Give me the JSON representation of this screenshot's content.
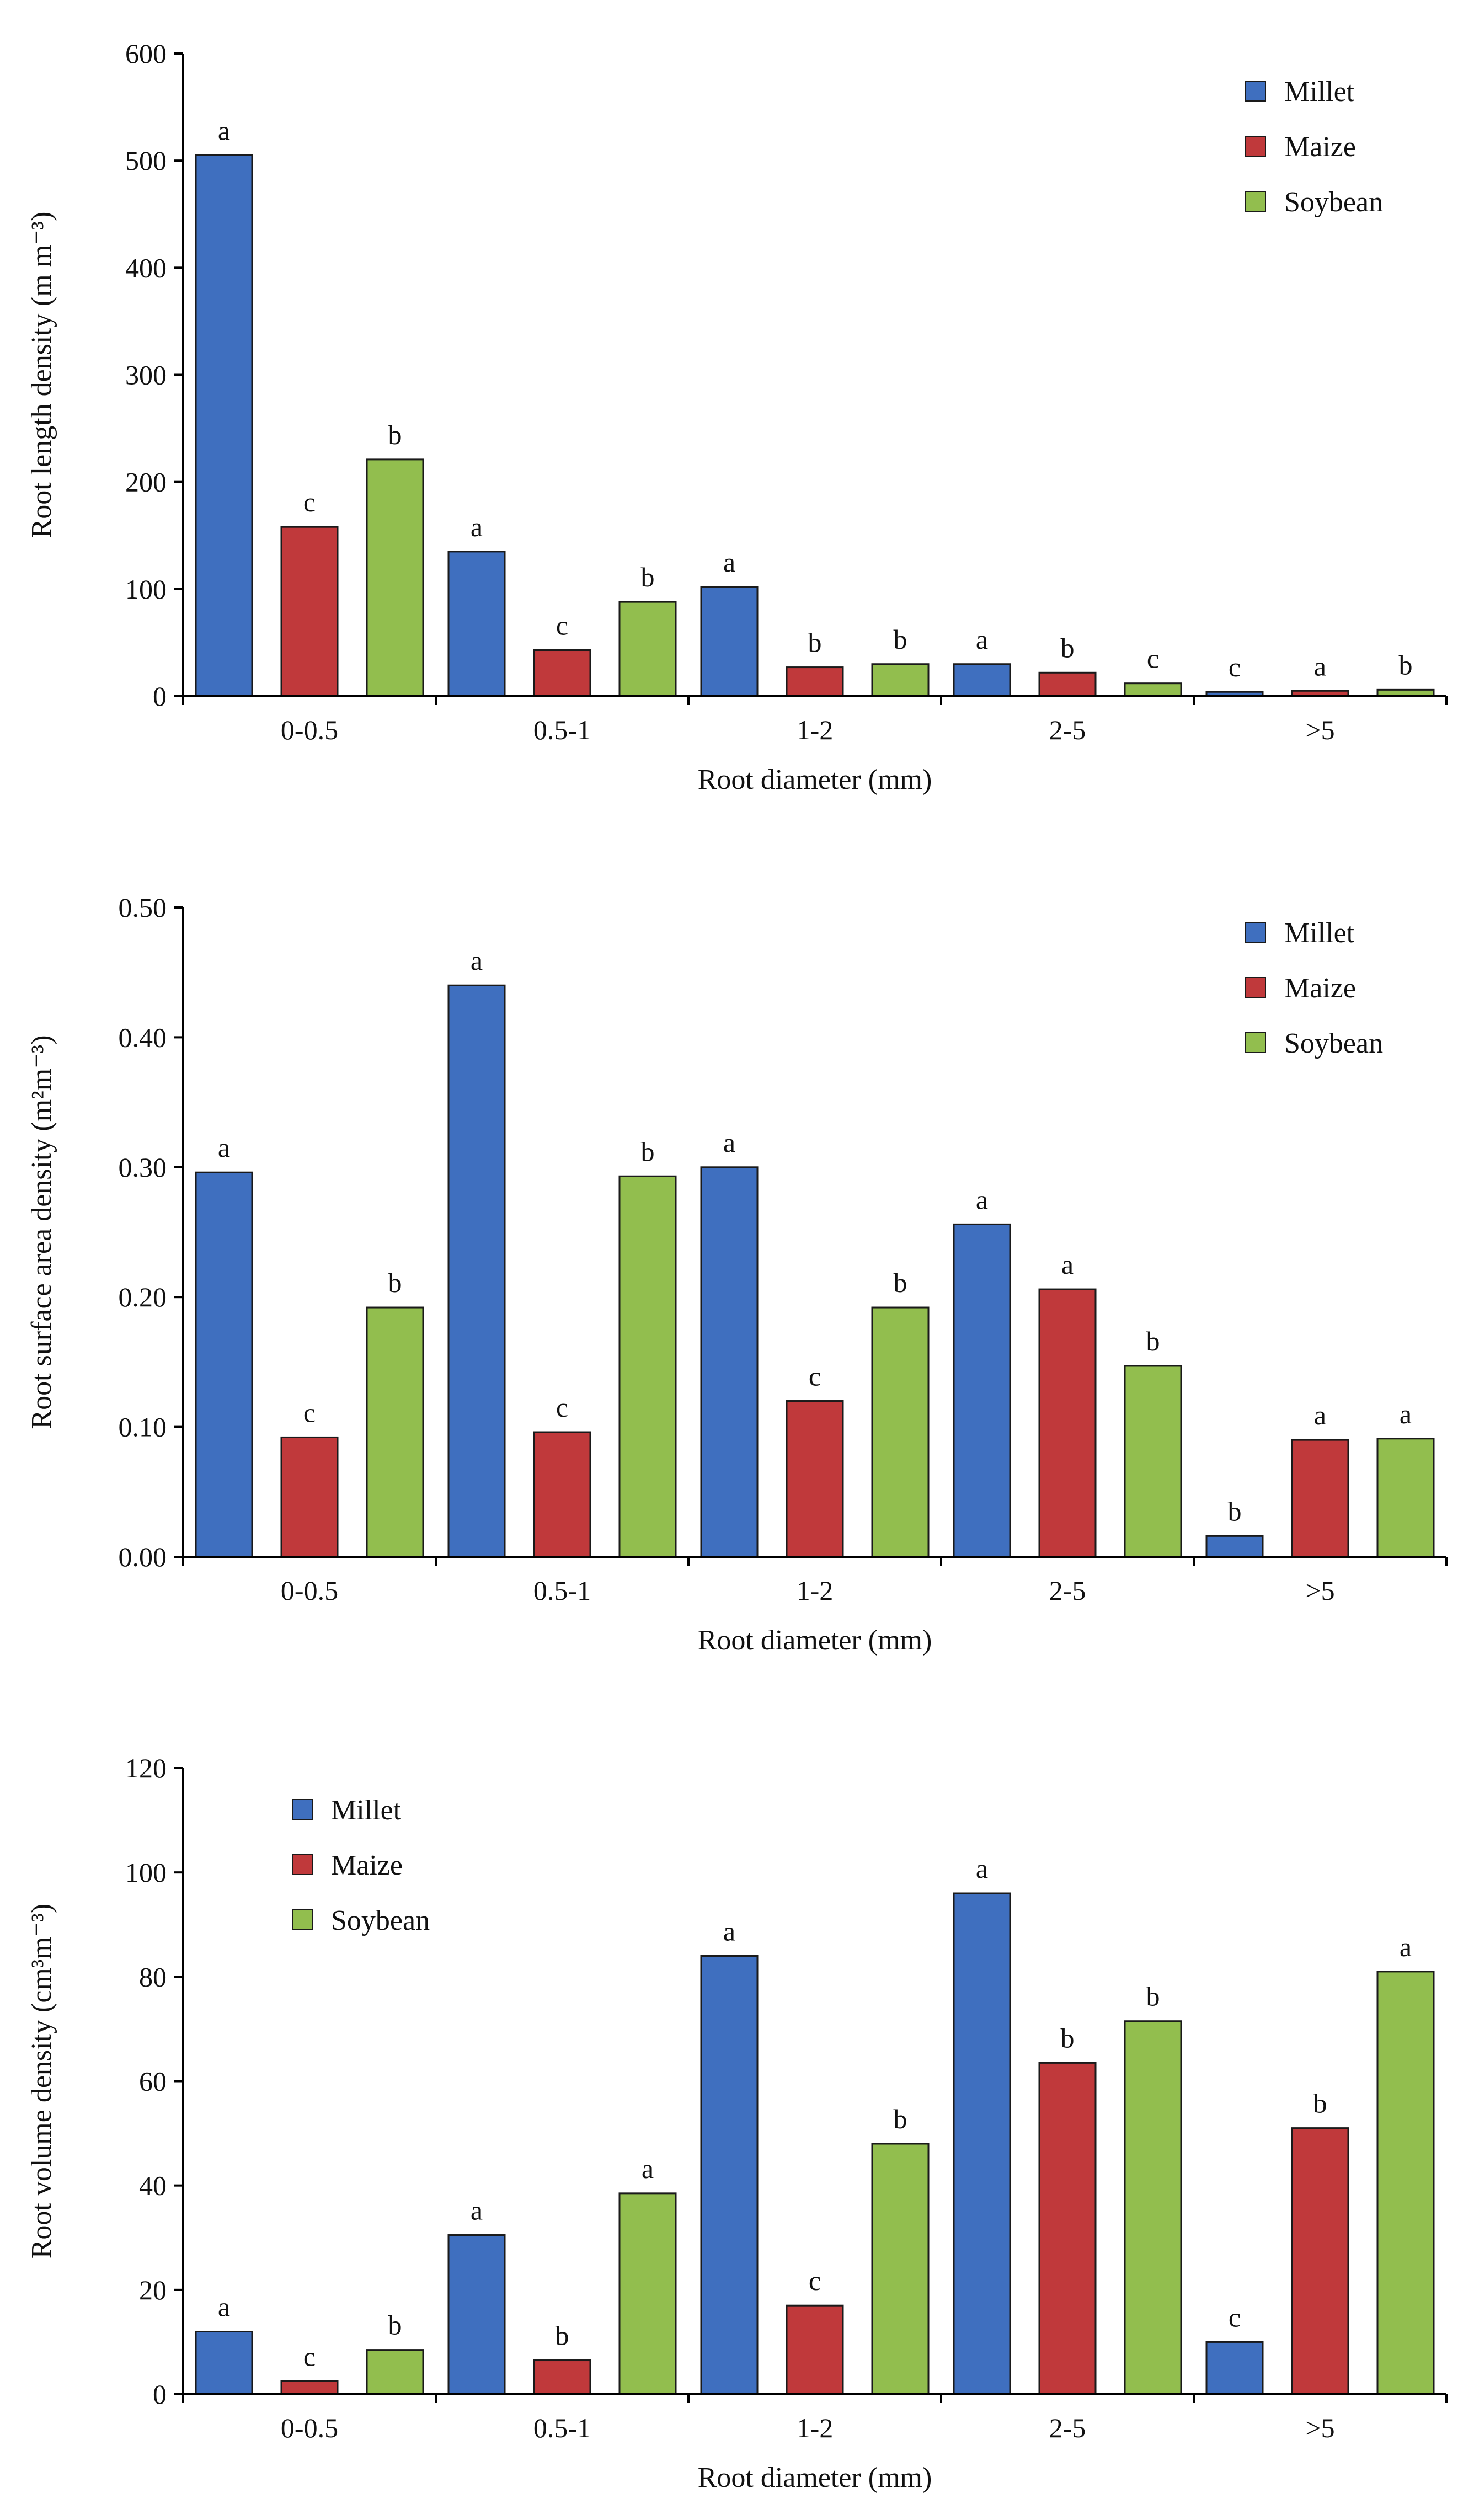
{
  "colors": {
    "Millet": "#3f6fbf",
    "Maize": "#c0393b",
    "Soybean": "#92be4e"
  },
  "chart_data": [
    {
      "type": "bar",
      "xlabel": "Root diameter (mm)",
      "ylabel": "Root length density (m m⁻³)",
      "categories": [
        "0-0.5",
        "0.5-1",
        "1-2",
        "2-5",
        ">5"
      ],
      "ylim": [
        0,
        600
      ],
      "yticks": [
        0,
        100,
        200,
        300,
        400,
        500,
        600
      ],
      "tick_labels": [
        "0",
        "100",
        "200",
        "300",
        "400",
        "500",
        "600"
      ],
      "legend_position": "top-right",
      "series": [
        {
          "name": "Millet",
          "values": [
            505,
            135,
            102,
            30,
            4
          ],
          "sig": [
            "a",
            "a",
            "a",
            "a",
            "c"
          ]
        },
        {
          "name": "Maize",
          "values": [
            158,
            43,
            27,
            22,
            5
          ],
          "sig": [
            "c",
            "c",
            "b",
            "b",
            "a"
          ]
        },
        {
          "name": "Soybean",
          "values": [
            221,
            88,
            30,
            12,
            6
          ],
          "sig": [
            "b",
            "b",
            "b",
            "c",
            "b"
          ]
        }
      ]
    },
    {
      "type": "bar",
      "xlabel": "Root diameter (mm)",
      "ylabel": "Root surface area density (m²m⁻³)",
      "categories": [
        "0-0.5",
        "0.5-1",
        "1-2",
        "2-5",
        ">5"
      ],
      "ylim": [
        0,
        0.5
      ],
      "yticks": [
        0,
        0.1,
        0.2,
        0.3,
        0.4,
        0.5
      ],
      "tick_labels": [
        "0.00",
        "0.10",
        "0.20",
        "0.30",
        "0.40",
        "0.50"
      ],
      "legend_position": "top-right",
      "series": [
        {
          "name": "Millet",
          "values": [
            0.296,
            0.44,
            0.3,
            0.256,
            0.016
          ],
          "sig": [
            "a",
            "a",
            "a",
            "a",
            "b"
          ]
        },
        {
          "name": "Maize",
          "values": [
            0.092,
            0.096,
            0.12,
            0.206,
            0.09
          ],
          "sig": [
            "c",
            "c",
            "c",
            "a",
            "a"
          ]
        },
        {
          "name": "Soybean",
          "values": [
            0.192,
            0.293,
            0.192,
            0.147,
            0.091
          ],
          "sig": [
            "b",
            "b",
            "b",
            "b",
            "a"
          ]
        }
      ]
    },
    {
      "type": "bar",
      "xlabel": "Root diameter (mm)",
      "ylabel": "Root volume density (cm³m⁻³)",
      "categories": [
        "0-0.5",
        "0.5-1",
        "1-2",
        "2-5",
        ">5"
      ],
      "ylim": [
        0,
        120
      ],
      "yticks": [
        0,
        20,
        40,
        60,
        80,
        100,
        120
      ],
      "tick_labels": [
        "0",
        "20",
        "40",
        "60",
        "80",
        "100",
        "120"
      ],
      "legend_position": "top-left",
      "series": [
        {
          "name": "Millet",
          "values": [
            12,
            30.5,
            84,
            96,
            10
          ],
          "sig": [
            "a",
            "a",
            "a",
            "a",
            "c"
          ]
        },
        {
          "name": "Maize",
          "values": [
            2.5,
            6.5,
            17,
            63.5,
            51
          ],
          "sig": [
            "c",
            "b",
            "c",
            "b",
            "b"
          ]
        },
        {
          "name": "Soybean",
          "values": [
            8.5,
            38.5,
            48,
            71.5,
            81
          ],
          "sig": [
            "b",
            "a",
            "b",
            "b",
            "a"
          ]
        }
      ]
    }
  ]
}
